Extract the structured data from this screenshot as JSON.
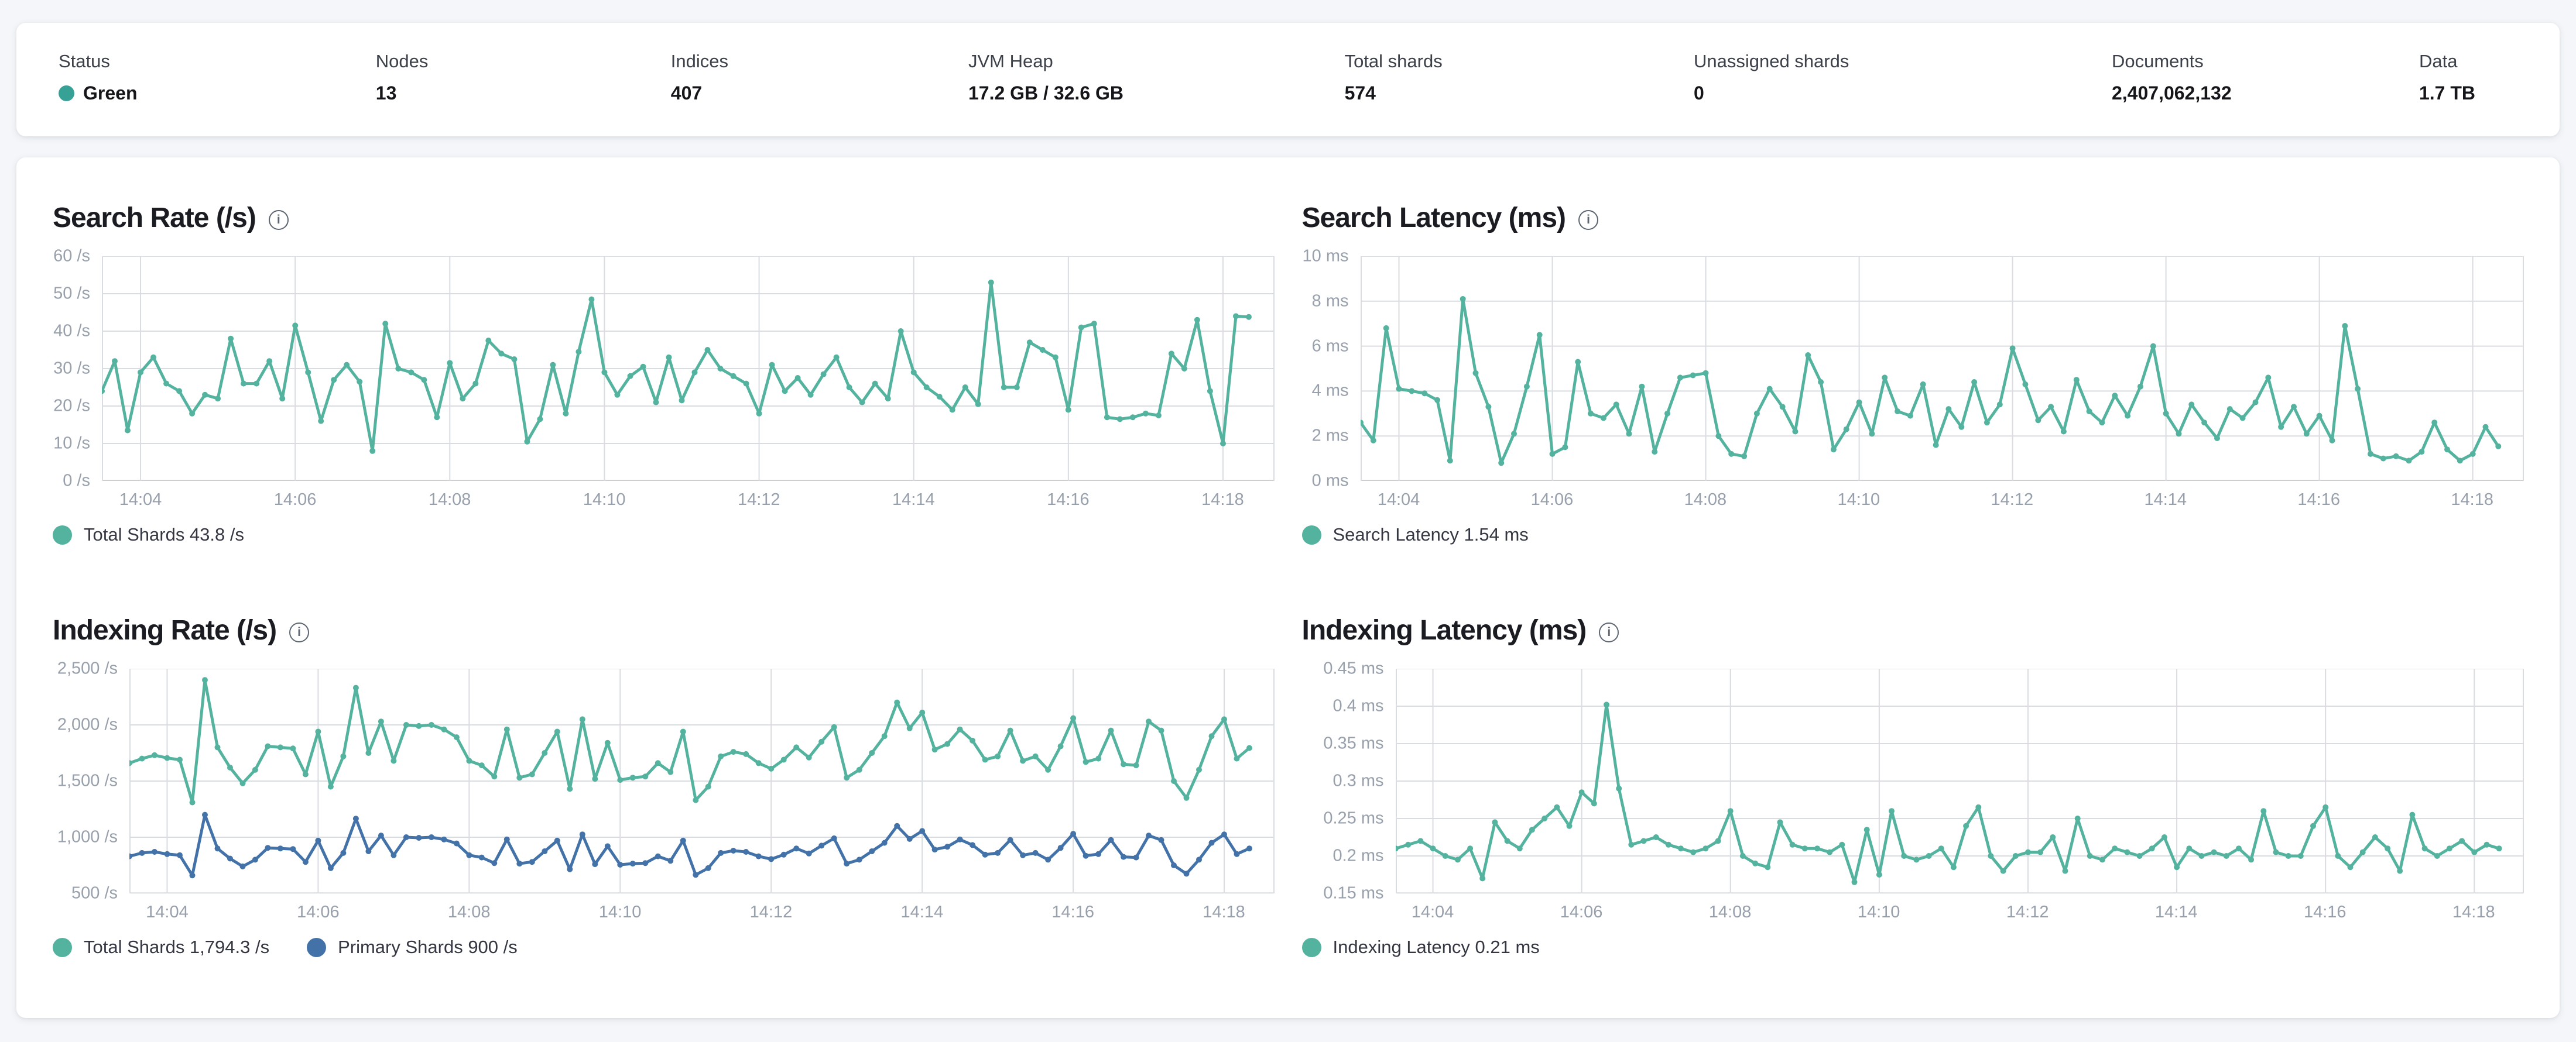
{
  "summary_bar": {
    "items": [
      {
        "label": "Status",
        "value": "Green",
        "has_status_dot": true
      },
      {
        "label": "Nodes",
        "value": "13"
      },
      {
        "label": "Indices",
        "value": "407"
      },
      {
        "label": "JVM Heap",
        "value": "17.2 GB / 32.6 GB"
      },
      {
        "label": "Total shards",
        "value": "574"
      },
      {
        "label": "Unassigned shards",
        "value": "0"
      },
      {
        "label": "Documents",
        "value": "2,407,062,132"
      },
      {
        "label": "Data",
        "value": "1.7 TB"
      }
    ]
  },
  "colors": {
    "teal": "#54b39e",
    "blue": "#4372a8",
    "status_green": "#38a196",
    "grid": "#d9dce1",
    "axis_line": "#c5cad1",
    "axis_text": "#98a0ac"
  },
  "x_axis": {
    "tick_labels": [
      "14:04",
      "14:06",
      "14:08",
      "14:10",
      "14:12",
      "14:14",
      "14:16",
      "14:18"
    ],
    "tick_indices": [
      3,
      15,
      27,
      39,
      51,
      63,
      75,
      87
    ],
    "points_count": 90,
    "domain_steps": 91
  },
  "charts": [
    {
      "id": "search-rate",
      "title": "Search Rate (/s)",
      "info_icon": "i",
      "y_ticks": [
        "60 /s",
        "50 /s",
        "40 /s",
        "30 /s",
        "20 /s",
        "10 /s",
        "0 /s"
      ],
      "y_min": 0,
      "y_max": 60,
      "legend": [
        {
          "label": "Total Shards 43.8 /s",
          "color": "teal"
        }
      ],
      "series": [
        {
          "name": "Total Shards",
          "color": "teal",
          "type": "line",
          "values": [
            24,
            32,
            13.5,
            29,
            33,
            26,
            24,
            18,
            23,
            22,
            38,
            26,
            26,
            32,
            22,
            41.5,
            29,
            16,
            27,
            31,
            26.5,
            8,
            42,
            30,
            29,
            27,
            17,
            31.5,
            22,
            26,
            37.5,
            34,
            32.5,
            10.5,
            16.5,
            31,
            18,
            34.5,
            48.5,
            29,
            23,
            28,
            30.5,
            21,
            33,
            21.5,
            29,
            35,
            30,
            28,
            26,
            18,
            31,
            24,
            27.5,
            23,
            28.5,
            33,
            25,
            21,
            26,
            22,
            40,
            29,
            25,
            22.5,
            19,
            25,
            20.5,
            53,
            25,
            25,
            37,
            35,
            33,
            19,
            41,
            42,
            17,
            16.5,
            17,
            18,
            17.5,
            34,
            30,
            43,
            24,
            10,
            44,
            43.8
          ]
        }
      ]
    },
    {
      "id": "search-latency",
      "title": "Search Latency (ms)",
      "info_icon": "i",
      "y_ticks": [
        "10 ms",
        "8 ms",
        "6 ms",
        "4 ms",
        "2 ms",
        "0 ms"
      ],
      "y_min": 0,
      "y_max": 10,
      "legend": [
        {
          "label": "Search Latency 1.54 ms",
          "color": "teal"
        }
      ],
      "series": [
        {
          "name": "Search Latency",
          "color": "teal",
          "type": "line",
          "values": [
            2.6,
            1.8,
            6.8,
            4.1,
            4.0,
            3.9,
            3.6,
            0.9,
            8.1,
            4.8,
            3.3,
            0.8,
            2.1,
            4.2,
            6.5,
            1.2,
            1.5,
            5.3,
            3.0,
            2.8,
            3.4,
            2.1,
            4.2,
            1.3,
            3.0,
            4.6,
            4.7,
            4.8,
            2.0,
            1.2,
            1.1,
            3.0,
            4.1,
            3.3,
            2.2,
            5.6,
            4.4,
            1.4,
            2.3,
            3.5,
            2.1,
            4.6,
            3.1,
            2.9,
            4.3,
            1.6,
            3.2,
            2.4,
            4.4,
            2.6,
            3.4,
            5.9,
            4.3,
            2.7,
            3.3,
            2.2,
            4.5,
            3.1,
            2.6,
            3.8,
            2.9,
            4.2,
            6.0,
            3.0,
            2.1,
            3.4,
            2.6,
            1.9,
            3.2,
            2.8,
            3.5,
            4.6,
            2.4,
            3.3,
            2.1,
            2.9,
            1.8,
            6.9,
            4.1,
            1.2,
            1.0,
            1.1,
            0.9,
            1.3,
            2.6,
            1.4,
            0.9,
            1.2,
            2.4,
            1.54
          ]
        }
      ]
    },
    {
      "id": "indexing-rate",
      "title": "Indexing Rate (/s)",
      "info_icon": "i",
      "y_ticks": [
        "2,500 /s",
        "2,000 /s",
        "1,500 /s",
        "1,000 /s",
        "500 /s"
      ],
      "y_min": 500,
      "y_max": 2500,
      "legend": [
        {
          "label": "Total Shards 1,794.3 /s",
          "color": "teal"
        },
        {
          "label": "Primary Shards 900 /s",
          "color": "blue"
        }
      ],
      "series": [
        {
          "name": "Total Shards",
          "color": "teal",
          "type": "line",
          "values": [
            1660,
            1700,
            1730,
            1705,
            1690,
            1310,
            2400,
            1800,
            1620,
            1480,
            1600,
            1810,
            1800,
            1790,
            1560,
            1940,
            1450,
            1720,
            2330,
            1750,
            2030,
            1680,
            2000,
            1990,
            2000,
            1960,
            1890,
            1680,
            1640,
            1540,
            1960,
            1530,
            1560,
            1750,
            1940,
            1430,
            2050,
            1520,
            1840,
            1510,
            1530,
            1540,
            1660,
            1580,
            1940,
            1330,
            1450,
            1720,
            1760,
            1740,
            1660,
            1610,
            1690,
            1800,
            1710,
            1850,
            1980,
            1530,
            1600,
            1750,
            1900,
            2200,
            1970,
            2110,
            1780,
            1830,
            1960,
            1860,
            1690,
            1720,
            1950,
            1680,
            1720,
            1600,
            1810,
            2060,
            1670,
            1700,
            1950,
            1650,
            1640,
            2030,
            1950,
            1500,
            1350,
            1600,
            1900,
            2050,
            1700,
            1794.3
          ]
        },
        {
          "name": "Primary Shards",
          "color": "blue",
          "type": "line",
          "values": [
            830,
            860,
            870,
            850,
            840,
            660,
            1200,
            900,
            810,
            740,
            800,
            905,
            900,
            895,
            780,
            970,
            725,
            860,
            1165,
            875,
            1015,
            840,
            1000,
            995,
            1000,
            980,
            945,
            840,
            820,
            770,
            980,
            765,
            780,
            875,
            970,
            715,
            1025,
            760,
            920,
            755,
            765,
            770,
            830,
            790,
            970,
            665,
            725,
            860,
            880,
            870,
            830,
            805,
            845,
            900,
            855,
            925,
            990,
            765,
            800,
            875,
            950,
            1100,
            985,
            1055,
            890,
            915,
            980,
            930,
            845,
            860,
            975,
            840,
            860,
            800,
            905,
            1030,
            835,
            850,
            975,
            825,
            820,
            1015,
            975,
            750,
            675,
            800,
            950,
            1025,
            850,
            900
          ]
        }
      ]
    },
    {
      "id": "indexing-latency",
      "title": "Indexing Latency (ms)",
      "info_icon": "i",
      "y_ticks": [
        "0.45 ms",
        "0.4 ms",
        "0.35 ms",
        "0.3 ms",
        "0.25 ms",
        "0.2 ms",
        "0.15 ms"
      ],
      "y_min": 0.15,
      "y_max": 0.45,
      "legend": [
        {
          "label": "Indexing Latency 0.21 ms",
          "color": "teal"
        }
      ],
      "series": [
        {
          "name": "Indexing Latency",
          "color": "teal",
          "type": "line",
          "values": [
            0.21,
            0.215,
            0.22,
            0.21,
            0.2,
            0.195,
            0.21,
            0.17,
            0.245,
            0.22,
            0.21,
            0.235,
            0.25,
            0.265,
            0.24,
            0.285,
            0.27,
            0.402,
            0.29,
            0.215,
            0.22,
            0.225,
            0.215,
            0.21,
            0.205,
            0.21,
            0.22,
            0.26,
            0.2,
            0.19,
            0.185,
            0.245,
            0.215,
            0.21,
            0.21,
            0.205,
            0.215,
            0.165,
            0.235,
            0.175,
            0.26,
            0.2,
            0.195,
            0.2,
            0.21,
            0.185,
            0.24,
            0.265,
            0.2,
            0.18,
            0.2,
            0.205,
            0.205,
            0.225,
            0.18,
            0.25,
            0.2,
            0.195,
            0.21,
            0.205,
            0.2,
            0.21,
            0.225,
            0.185,
            0.21,
            0.2,
            0.205,
            0.2,
            0.21,
            0.195,
            0.26,
            0.205,
            0.2,
            0.2,
            0.24,
            0.265,
            0.2,
            0.185,
            0.205,
            0.225,
            0.21,
            0.18,
            0.255,
            0.21,
            0.2,
            0.21,
            0.22,
            0.205,
            0.215,
            0.21
          ]
        }
      ]
    }
  ]
}
